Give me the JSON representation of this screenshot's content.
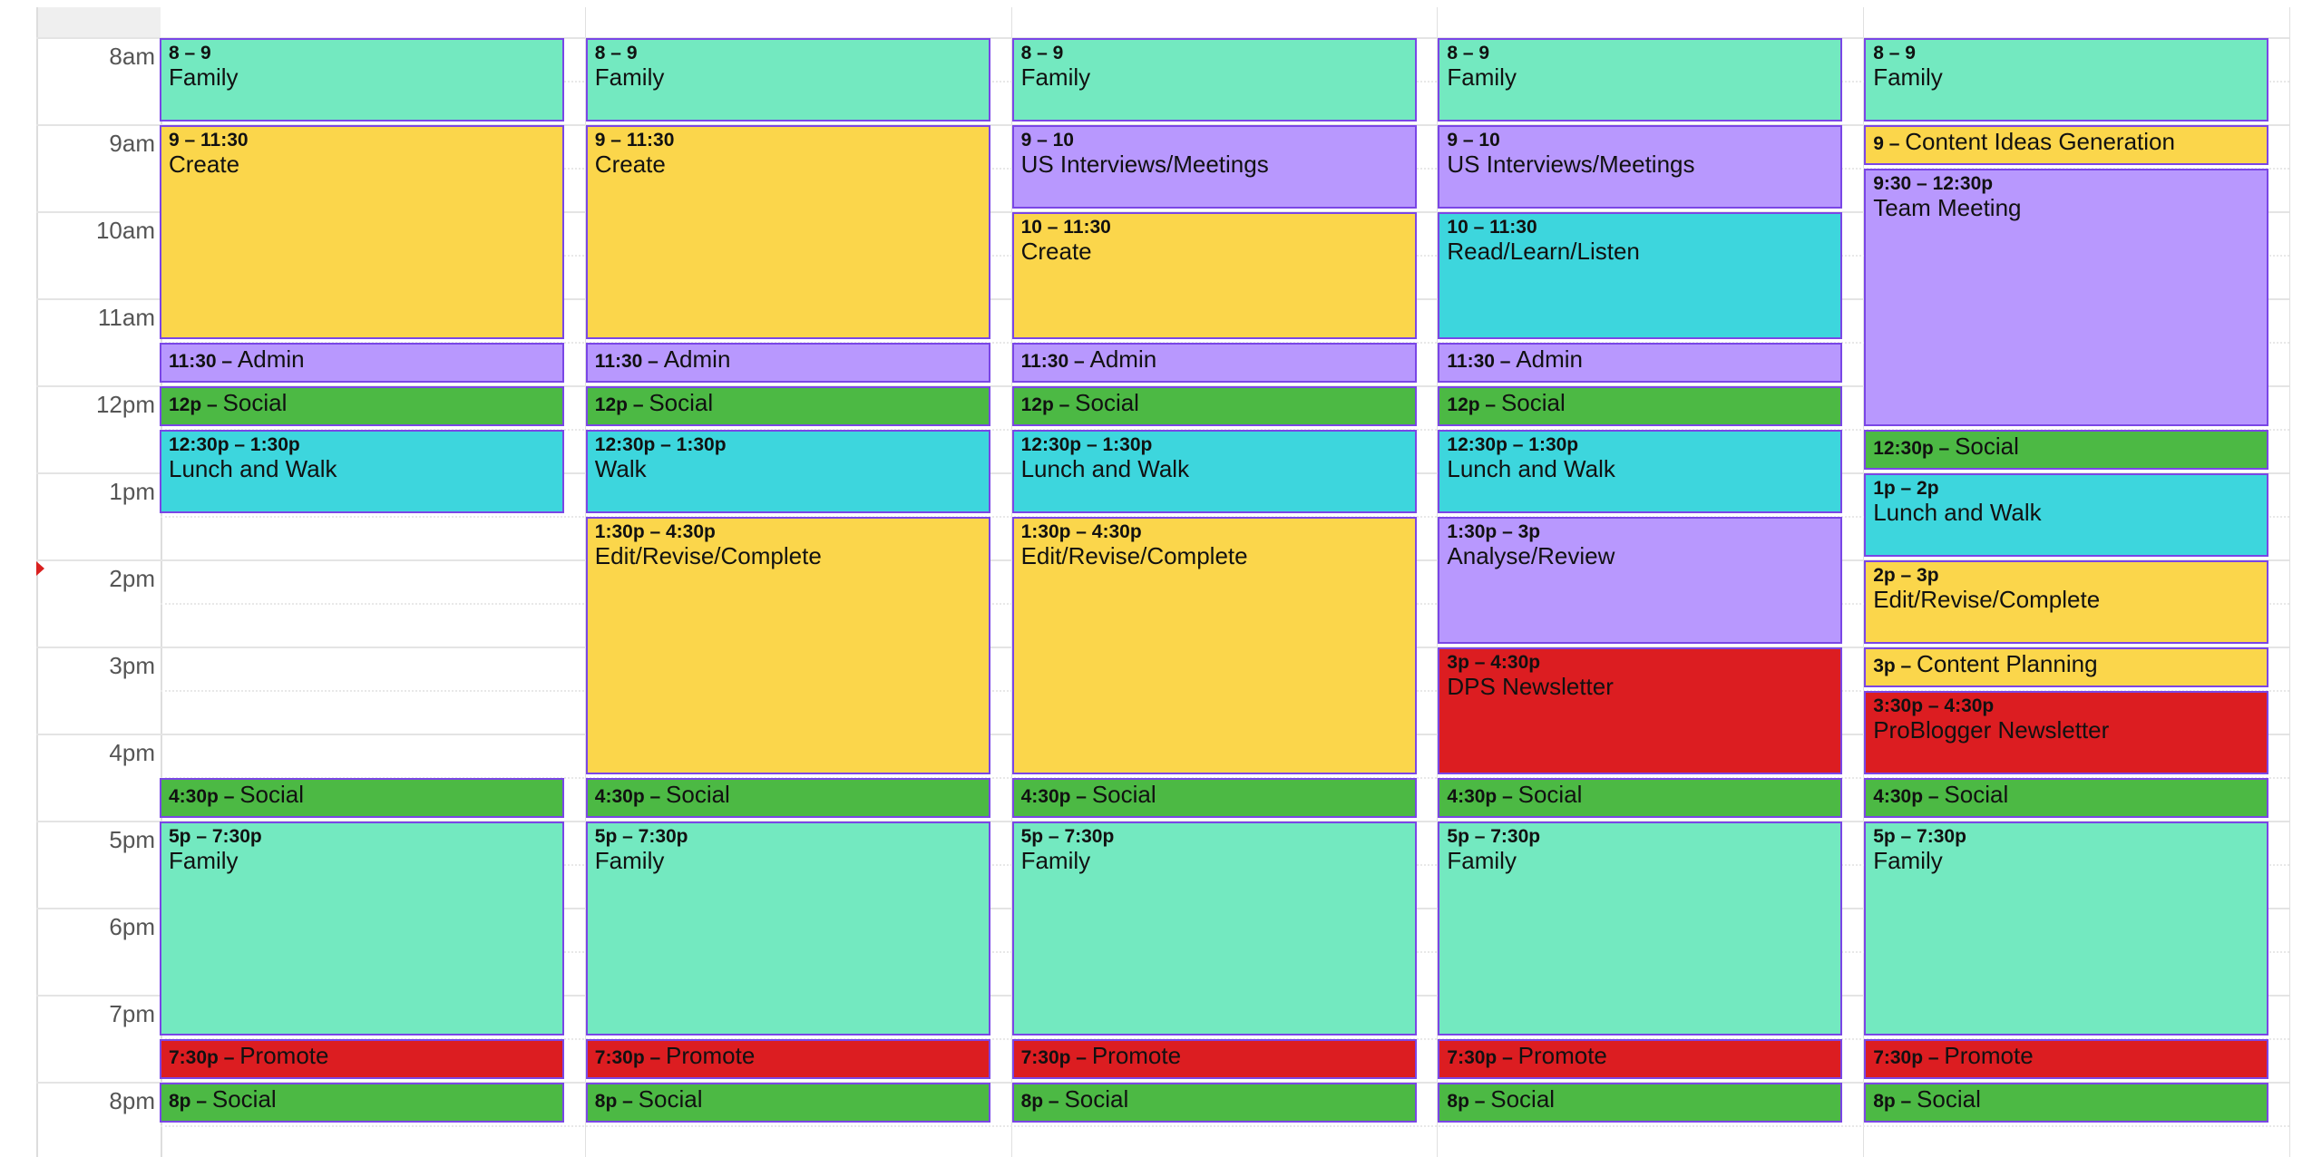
{
  "hours": [
    "8am",
    "9am",
    "10am",
    "11am",
    "12pm",
    "1pm",
    "2pm",
    "3pm",
    "4pm",
    "5pm",
    "6pm",
    "7pm",
    "8pm"
  ],
  "current_time_hour": 14.1,
  "colors": {
    "family": "#73e9c0",
    "create": "#fbd64b",
    "purple": "#b898fe",
    "cyan": "#3dd6dd",
    "green": "#4cb944",
    "red": "#dc1d21",
    "border": "#7a46e6"
  },
  "columns": [
    {
      "events": [
        {
          "time": "8 – 9",
          "title": "Family",
          "start": 8,
          "end": 9,
          "color": "family"
        },
        {
          "time": "9 – 11:30",
          "title": "Create",
          "start": 9,
          "end": 11.5,
          "color": "create"
        },
        {
          "time": "11:30 – ",
          "title": "Admin",
          "start": 11.5,
          "end": 12,
          "color": "purple"
        },
        {
          "time": "12p – ",
          "title": "Social",
          "start": 12,
          "end": 12.5,
          "color": "green"
        },
        {
          "time": "12:30p – 1:30p",
          "title": "Lunch and Walk",
          "start": 12.5,
          "end": 13.5,
          "color": "cyan"
        },
        {
          "time": "4:30p – ",
          "title": "Social",
          "start": 16.5,
          "end": 17,
          "color": "green"
        },
        {
          "time": "5p – 7:30p",
          "title": "Family",
          "start": 17,
          "end": 19.5,
          "color": "family"
        },
        {
          "time": "7:30p – ",
          "title": "Promote",
          "start": 19.5,
          "end": 20,
          "color": "red"
        },
        {
          "time": "8p – ",
          "title": "Social",
          "start": 20,
          "end": 20.5,
          "color": "green"
        }
      ]
    },
    {
      "events": [
        {
          "time": "8 – 9",
          "title": "Family",
          "start": 8,
          "end": 9,
          "color": "family"
        },
        {
          "time": "9 – 11:30",
          "title": "Create",
          "start": 9,
          "end": 11.5,
          "color": "create"
        },
        {
          "time": "11:30 – ",
          "title": "Admin",
          "start": 11.5,
          "end": 12,
          "color": "purple"
        },
        {
          "time": "12p – ",
          "title": "Social",
          "start": 12,
          "end": 12.5,
          "color": "green"
        },
        {
          "time": "12:30p – 1:30p",
          "title": "Walk",
          "start": 12.5,
          "end": 13.5,
          "color": "cyan"
        },
        {
          "time": "1:30p – 4:30p",
          "title": "Edit/Revise/Complete",
          "start": 13.5,
          "end": 16.5,
          "color": "create"
        },
        {
          "time": "4:30p – ",
          "title": "Social",
          "start": 16.5,
          "end": 17,
          "color": "green"
        },
        {
          "time": "5p – 7:30p",
          "title": "Family",
          "start": 17,
          "end": 19.5,
          "color": "family"
        },
        {
          "time": "7:30p – ",
          "title": "Promote",
          "start": 19.5,
          "end": 20,
          "color": "red"
        },
        {
          "time": "8p – ",
          "title": "Social",
          "start": 20,
          "end": 20.5,
          "color": "green"
        }
      ]
    },
    {
      "events": [
        {
          "time": "8 – 9",
          "title": "Family",
          "start": 8,
          "end": 9,
          "color": "family"
        },
        {
          "time": "9 – 10",
          "title": "US Interviews/Meetings",
          "start": 9,
          "end": 10,
          "color": "purple"
        },
        {
          "time": "10 – 11:30",
          "title": "Create",
          "start": 10,
          "end": 11.5,
          "color": "create"
        },
        {
          "time": "11:30 – ",
          "title": "Admin",
          "start": 11.5,
          "end": 12,
          "color": "purple"
        },
        {
          "time": "12p – ",
          "title": "Social",
          "start": 12,
          "end": 12.5,
          "color": "green"
        },
        {
          "time": "12:30p – 1:30p",
          "title": "Lunch and Walk",
          "start": 12.5,
          "end": 13.5,
          "color": "cyan"
        },
        {
          "time": "1:30p – 4:30p",
          "title": "Edit/Revise/Complete",
          "start": 13.5,
          "end": 16.5,
          "color": "create"
        },
        {
          "time": "4:30p – ",
          "title": "Social",
          "start": 16.5,
          "end": 17,
          "color": "green"
        },
        {
          "time": "5p – 7:30p",
          "title": "Family",
          "start": 17,
          "end": 19.5,
          "color": "family"
        },
        {
          "time": "7:30p – ",
          "title": "Promote",
          "start": 19.5,
          "end": 20,
          "color": "red"
        },
        {
          "time": "8p – ",
          "title": "Social",
          "start": 20,
          "end": 20.5,
          "color": "green"
        }
      ]
    },
    {
      "events": [
        {
          "time": "8 – 9",
          "title": "Family",
          "start": 8,
          "end": 9,
          "color": "family"
        },
        {
          "time": "9 – 10",
          "title": "US Interviews/Meetings",
          "start": 9,
          "end": 10,
          "color": "purple"
        },
        {
          "time": "10 – 11:30",
          "title": "Read/Learn/Listen",
          "start": 10,
          "end": 11.5,
          "color": "cyan"
        },
        {
          "time": "11:30 – ",
          "title": "Admin",
          "start": 11.5,
          "end": 12,
          "color": "purple"
        },
        {
          "time": "12p – ",
          "title": "Social",
          "start": 12,
          "end": 12.5,
          "color": "green"
        },
        {
          "time": "12:30p – 1:30p",
          "title": "Lunch and Walk",
          "start": 12.5,
          "end": 13.5,
          "color": "cyan"
        },
        {
          "time": "1:30p – 3p",
          "title": "Analyse/Review",
          "start": 13.5,
          "end": 15,
          "color": "purple"
        },
        {
          "time": "3p – 4:30p",
          "title": "DPS Newsletter",
          "start": 15,
          "end": 16.5,
          "color": "red"
        },
        {
          "time": "4:30p – ",
          "title": "Social",
          "start": 16.5,
          "end": 17,
          "color": "green"
        },
        {
          "time": "5p – 7:30p",
          "title": "Family",
          "start": 17,
          "end": 19.5,
          "color": "family"
        },
        {
          "time": "7:30p – ",
          "title": "Promote",
          "start": 19.5,
          "end": 20,
          "color": "red"
        },
        {
          "time": "8p – ",
          "title": "Social",
          "start": 20,
          "end": 20.5,
          "color": "green"
        }
      ]
    },
    {
      "events": [
        {
          "time": "8 – 9",
          "title": "Family",
          "start": 8,
          "end": 9,
          "color": "family"
        },
        {
          "time": "9 – ",
          "title": "Content Ideas Generation",
          "start": 9,
          "end": 9.5,
          "color": "create"
        },
        {
          "time": "9:30 – 12:30p",
          "title": "Team Meeting",
          "start": 9.5,
          "end": 12.5,
          "color": "purple"
        },
        {
          "time": "12:30p – ",
          "title": "Social",
          "start": 12.5,
          "end": 13,
          "color": "green"
        },
        {
          "time": "1p – 2p",
          "title": "Lunch and Walk",
          "start": 13,
          "end": 14,
          "color": "cyan"
        },
        {
          "time": "2p – 3p",
          "title": "Edit/Revise/Complete",
          "start": 14,
          "end": 15,
          "color": "create"
        },
        {
          "time": "3p – ",
          "title": "Content Planning",
          "start": 15,
          "end": 15.5,
          "color": "create"
        },
        {
          "time": "3:30p – 4:30p",
          "title": "ProBlogger Newsletter",
          "start": 15.5,
          "end": 16.5,
          "color": "red"
        },
        {
          "time": "4:30p – ",
          "title": "Social",
          "start": 16.5,
          "end": 17,
          "color": "green"
        },
        {
          "time": "5p – 7:30p",
          "title": "Family",
          "start": 17,
          "end": 19.5,
          "color": "family"
        },
        {
          "time": "7:30p – ",
          "title": "Promote",
          "start": 19.5,
          "end": 20,
          "color": "red"
        },
        {
          "time": "8p – ",
          "title": "Social",
          "start": 20,
          "end": 20.5,
          "color": "green"
        }
      ]
    }
  ]
}
